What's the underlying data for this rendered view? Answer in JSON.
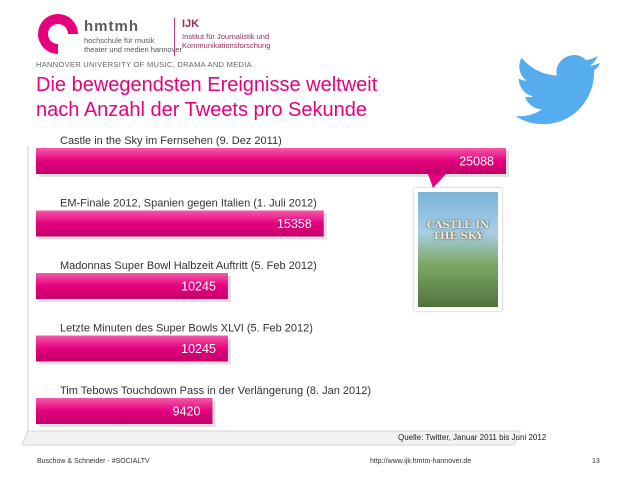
{
  "header": {
    "logo_name": "hmtmh",
    "logo_line1": "hochschule für musik",
    "logo_line2": "theater und medien hannover",
    "ijk": "IJK",
    "ijk_line1": "Institut für Journalistik und",
    "ijk_line2": "Kommunikationsforschung",
    "university": "HANNOVER UNIVERSITY OF MUSIC, DRAMA AND MEDIA"
  },
  "title_line1": "Die bewegendsten Ereignisse weltweit",
  "title_line2": "nach Anzahl der Tweets pro Sekunde",
  "poster_title": "CASTLE IN THE SKY",
  "source": "Quelle: Twitter, Januar 2011 bis Juni 2012",
  "footer": {
    "left": "Buschow & Schneider - #SOCIALTV",
    "url": "http://www.ijk.hmtm-hannover.de",
    "page": "13"
  },
  "colors": {
    "accent": "#e5007e",
    "twitter": "#55acee"
  },
  "chart_data": {
    "type": "bar",
    "orientation": "horizontal",
    "categories": [
      "Castle in the Sky im Fernsehen (9. Dez 2011)",
      "EM-Finale 2012, Spanien gegen Italien (1. Juli 2012)",
      "Madonnas Super Bowl Halbzeit Auftritt (5. Feb 2012)",
      "Letzte Minuten des Super Bowls XLVI (5. Feb 2012)",
      "Tim Tebows Touchdown Pass in der Verlängerung (8. Jan 2012)"
    ],
    "values": [
      25088,
      15358,
      10245,
      10245,
      9420
    ],
    "value_labels": [
      "25088",
      "15358",
      "10245",
      "10245",
      "9420"
    ],
    "xlim": [
      0,
      25088
    ],
    "grid": false,
    "legend": "none"
  }
}
